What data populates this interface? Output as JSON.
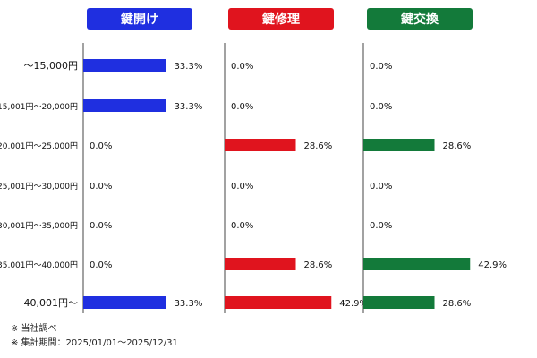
{
  "chart_data": {
    "type": "bar",
    "orientation": "horizontal",
    "categories": [
      "〜15,000円",
      "15,001円〜20,000円",
      "20,001円〜25,000円",
      "25,001円〜30,000円",
      "30,001円〜35,000円",
      "35,001円〜40,000円",
      "40,001円〜"
    ],
    "series": [
      {
        "name": "鍵開け",
        "color": "#1f2fe0",
        "values": [
          33.3,
          33.3,
          0.0,
          0.0,
          0.0,
          0.0,
          33.3
        ]
      },
      {
        "name": "鍵修理",
        "color": "#e0141e",
        "values": [
          0.0,
          0.0,
          28.6,
          0.0,
          0.0,
          28.6,
          42.9
        ]
      },
      {
        "name": "鍵交換",
        "color": "#137a3a",
        "values": [
          0.0,
          0.0,
          28.6,
          0.0,
          0.0,
          42.9,
          28.6
        ]
      }
    ],
    "value_suffix": "%",
    "xlim": [
      0,
      100
    ]
  },
  "footnotes": [
    "※ 当社調べ",
    "※ 集計期間：2025/01/01〜2025/12/31"
  ]
}
